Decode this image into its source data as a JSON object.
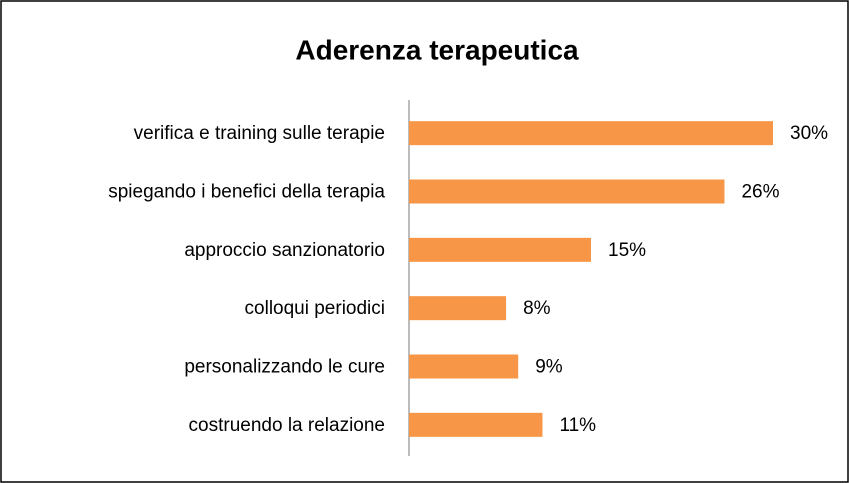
{
  "chart_data": {
    "type": "bar",
    "orientation": "horizontal",
    "title": "Aderenza terapeutica",
    "categories": [
      "verifica e training sulle terapie",
      "spiegando i benefici della terapia",
      "approccio sanzionatorio",
      "colloqui periodici",
      "personalizzando le cure",
      "costruendo la relazione"
    ],
    "values": [
      30,
      26,
      15,
      8,
      9,
      11
    ],
    "value_labels": [
      "30%",
      "26%",
      "15%",
      "8%",
      "9%",
      "11%"
    ],
    "color": "#f79646",
    "xlim": [
      0,
      30
    ]
  }
}
